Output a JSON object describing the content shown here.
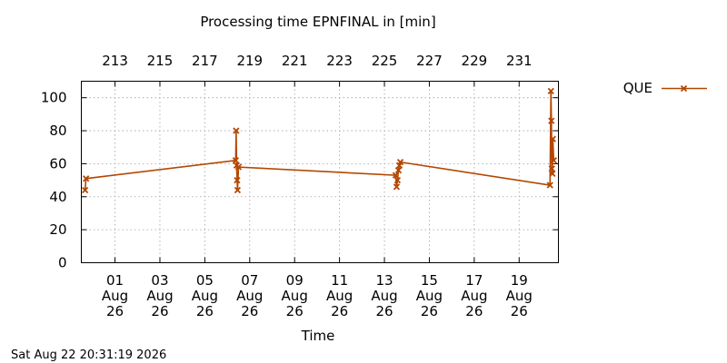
{
  "chart_data": {
    "type": "line",
    "title": "Processing time EPNFINAL in [min]",
    "xlabel": "Time",
    "ylabel": "",
    "x_ticks_bottom": [
      {
        "date": "2026-08-01",
        "lines": [
          "01",
          "Aug",
          "26"
        ]
      },
      {
        "date": "2026-08-03",
        "lines": [
          "03",
          "Aug",
          "26"
        ]
      },
      {
        "date": "2026-08-05",
        "lines": [
          "05",
          "Aug",
          "26"
        ]
      },
      {
        "date": "2026-08-07",
        "lines": [
          "07",
          "Aug",
          "26"
        ]
      },
      {
        "date": "2026-08-09",
        "lines": [
          "09",
          "Aug",
          "26"
        ]
      },
      {
        "date": "2026-08-11",
        "lines": [
          "11",
          "Aug",
          "26"
        ]
      },
      {
        "date": "2026-08-13",
        "lines": [
          "13",
          "Aug",
          "26"
        ]
      },
      {
        "date": "2026-08-15",
        "lines": [
          "15",
          "Aug",
          "26"
        ]
      },
      {
        "date": "2026-08-17",
        "lines": [
          "17",
          "Aug",
          "26"
        ]
      },
      {
        "date": "2026-08-19",
        "lines": [
          "19",
          "Aug",
          "26"
        ]
      }
    ],
    "x_ticks_top": [
      {
        "date": "2026-08-01",
        "label": "213"
      },
      {
        "date": "2026-08-03",
        "label": "215"
      },
      {
        "date": "2026-08-05",
        "label": "217"
      },
      {
        "date": "2026-08-07",
        "label": "219"
      },
      {
        "date": "2026-08-09",
        "label": "221"
      },
      {
        "date": "2026-08-11",
        "label": "223"
      },
      {
        "date": "2026-08-13",
        "label": "225"
      },
      {
        "date": "2026-08-15",
        "label": "227"
      },
      {
        "date": "2026-08-17",
        "label": "229"
      },
      {
        "date": "2026-08-19",
        "label": "231"
      }
    ],
    "xlim": [
      "2026-07-30 12:00",
      "2026-08-20 18:00"
    ],
    "y_ticks": [
      0,
      20,
      40,
      60,
      80,
      100
    ],
    "ylim": [
      0,
      110
    ],
    "grid": true,
    "legend_position": "right",
    "series": [
      {
        "name": "QUE",
        "color": "#b34700",
        "points": [
          {
            "x": "2026-07-30 16:00",
            "y": 44
          },
          {
            "x": "2026-07-30 17:00",
            "y": 51
          },
          {
            "x": "2026-08-06 09:00",
            "y": 62
          },
          {
            "x": "2026-08-06 09:30",
            "y": 80
          },
          {
            "x": "2026-08-06 10:00",
            "y": 59
          },
          {
            "x": "2026-08-06 10:30",
            "y": 50
          },
          {
            "x": "2026-08-06 11:00",
            "y": 44
          },
          {
            "x": "2026-08-06 12:00",
            "y": 58
          },
          {
            "x": "2026-08-13 12:00",
            "y": 53
          },
          {
            "x": "2026-08-13 13:00",
            "y": 46
          },
          {
            "x": "2026-08-13 14:00",
            "y": 50
          },
          {
            "x": "2026-08-13 15:00",
            "y": 56
          },
          {
            "x": "2026-08-13 16:00",
            "y": 59
          },
          {
            "x": "2026-08-13 17:00",
            "y": 61
          },
          {
            "x": "2026-08-20 09:00",
            "y": 47
          },
          {
            "x": "2026-08-20 10:00",
            "y": 104
          },
          {
            "x": "2026-08-20 10:30",
            "y": 86
          },
          {
            "x": "2026-08-20 11:00",
            "y": 57
          },
          {
            "x": "2026-08-20 11:30",
            "y": 54
          },
          {
            "x": "2026-08-20 12:00",
            "y": 75
          },
          {
            "x": "2026-08-20 13:00",
            "y": 62
          }
        ]
      }
    ]
  },
  "footer": {
    "timestamp": "Sat Aug 22 20:31:19 2026"
  }
}
